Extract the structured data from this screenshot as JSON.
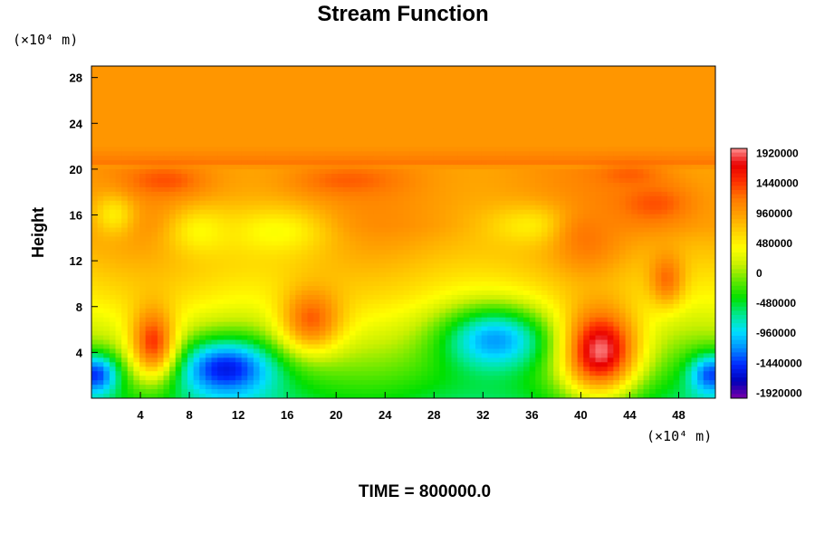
{
  "chart_data": {
    "type": "heatmap",
    "title": "Stream Function",
    "ylabel": "Height",
    "xlabel": "",
    "x_unit": "(×10⁴ m)",
    "y_unit": "(×10⁴ m)",
    "footer": "TIME = 800000.0",
    "xlim": [
      0,
      51
    ],
    "ylim": [
      0,
      29
    ],
    "x_ticks": [
      4,
      8,
      12,
      16,
      20,
      24,
      28,
      32,
      36,
      40,
      44,
      48
    ],
    "y_ticks": [
      4,
      8,
      12,
      16,
      20,
      24,
      28
    ],
    "colorbar": {
      "range": [
        -2000000,
        2000000
      ],
      "labels": [
        "1920000",
        "1440000",
        "960000",
        "480000",
        "0",
        "-480000",
        "-960000",
        "-1440000",
        "-1920000"
      ],
      "label_values": [
        1920000,
        1440000,
        960000,
        480000,
        0,
        -480000,
        -960000,
        -1440000,
        -1920000
      ],
      "colors": [
        "#7a00a8",
        "#0000b8",
        "#0028ff",
        "#0090ff",
        "#00e0ff",
        "#00e890",
        "#00e000",
        "#60e800",
        "#c8f000",
        "#ffff00",
        "#ffd000",
        "#ffa000",
        "#ff7800",
        "#ff3000",
        "#e80000",
        "#ff9090"
      ]
    },
    "field": {
      "background": 1000000,
      "features": [
        {
          "x": 41.5,
          "y": 4.2,
          "value": 2000000,
          "sx": 2.2,
          "sy": 2.6
        },
        {
          "x": 11,
          "y": 2.5,
          "value": -1560000,
          "sx": 2.8,
          "sy": 1.8
        },
        {
          "x": 33,
          "y": 5,
          "value": -1150000,
          "sx": 3.0,
          "sy": 2.0
        },
        {
          "x": 5,
          "y": 5,
          "value": 1450000,
          "sx": 1.3,
          "sy": 2.2
        },
        {
          "x": 0.3,
          "y": 2,
          "value": -1450000,
          "sx": 1.3,
          "sy": 1.3
        },
        {
          "x": 50.7,
          "y": 2,
          "value": -1400000,
          "sx": 1.3,
          "sy": 1.3
        },
        {
          "x": 18,
          "y": 7,
          "value": 1300000,
          "sx": 1.8,
          "sy": 2.0
        },
        {
          "x": 15,
          "y": 14.5,
          "value": 380000,
          "sx": 3.2,
          "sy": 1.6
        },
        {
          "x": 9,
          "y": 14.5,
          "value": 420000,
          "sx": 2.0,
          "sy": 1.6
        },
        {
          "x": 36,
          "y": 15,
          "value": 480000,
          "sx": 3.0,
          "sy": 1.4
        },
        {
          "x": 1.8,
          "y": 16,
          "value": 500000,
          "sx": 1.3,
          "sy": 1.4
        },
        {
          "x": 6,
          "y": 19,
          "value": 1350000,
          "sx": 2.2,
          "sy": 0.9
        },
        {
          "x": 21,
          "y": 19,
          "value": 1300000,
          "sx": 3.0,
          "sy": 0.9
        },
        {
          "x": 46,
          "y": 17,
          "value": 1350000,
          "sx": 2.4,
          "sy": 1.4
        },
        {
          "x": 44,
          "y": 19.5,
          "value": 1300000,
          "sx": 2.0,
          "sy": 0.8
        },
        {
          "x": 40.5,
          "y": 14,
          "value": 1200000,
          "sx": 1.8,
          "sy": 2.0
        },
        {
          "x": 47,
          "y": 10.5,
          "value": 1250000,
          "sx": 1.0,
          "sy": 1.6
        }
      ]
    }
  }
}
